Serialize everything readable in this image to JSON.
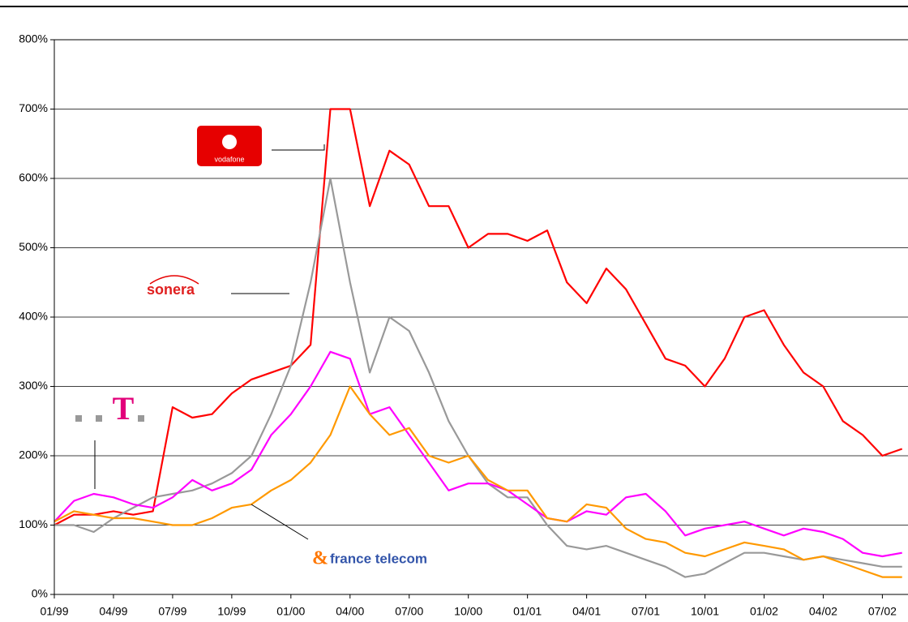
{
  "chart_data": {
    "type": "line",
    "x": [
      0,
      1,
      2,
      3,
      4,
      5,
      6,
      7,
      8,
      9,
      10,
      11,
      12,
      13,
      14,
      15,
      16,
      17,
      18,
      19,
      20,
      21,
      22,
      23,
      24,
      25,
      26,
      27,
      28,
      29,
      30,
      31,
      32,
      33,
      34,
      35,
      36,
      37,
      38,
      39,
      40,
      41,
      42,
      43
    ],
    "series": [
      {
        "name": "vodafone",
        "color": "#ff0000",
        "values": [
          100,
          115,
          115,
          120,
          115,
          120,
          270,
          255,
          260,
          290,
          310,
          320,
          330,
          360,
          700,
          700,
          560,
          640,
          620,
          560,
          560,
          500,
          520,
          520,
          510,
          525,
          450,
          420,
          470,
          440,
          390,
          340,
          330,
          300,
          340,
          400,
          410,
          360,
          320,
          300,
          250,
          230,
          200,
          210
        ]
      },
      {
        "name": "sonera",
        "color": "#999999",
        "values": [
          100,
          100,
          90,
          110,
          125,
          140,
          145,
          150,
          160,
          175,
          200,
          260,
          330,
          450,
          600,
          450,
          320,
          400,
          380,
          320,
          250,
          200,
          160,
          140,
          140,
          100,
          70,
          65,
          70,
          60,
          50,
          40,
          25,
          30,
          45,
          60,
          60,
          55,
          50,
          55,
          50,
          45,
          40,
          40
        ]
      },
      {
        "name": "T",
        "color": "#ff00ff",
        "values": [
          105,
          135,
          145,
          140,
          130,
          125,
          140,
          165,
          150,
          160,
          180,
          230,
          260,
          300,
          350,
          340,
          260,
          270,
          230,
          190,
          150,
          160,
          160,
          150,
          130,
          110,
          105,
          120,
          115,
          140,
          145,
          120,
          85,
          95,
          100,
          105,
          95,
          85,
          95,
          90,
          80,
          60,
          55,
          60
        ]
      },
      {
        "name": "france telecom",
        "color": "#ff9900",
        "values": [
          105,
          120,
          115,
          110,
          110,
          105,
          100,
          100,
          110,
          125,
          130,
          150,
          165,
          190,
          230,
          300,
          260,
          230,
          240,
          200,
          190,
          200,
          165,
          150,
          150,
          110,
          105,
          130,
          125,
          95,
          80,
          75,
          60,
          55,
          65,
          75,
          70,
          65,
          50,
          55,
          45,
          35,
          25,
          25
        ]
      }
    ],
    "xlim": [
      0,
      43.3
    ],
    "xticks": [
      {
        "value": 0,
        "label": "01/99"
      },
      {
        "value": 3,
        "label": "04/99"
      },
      {
        "value": 6,
        "label": "07/99"
      },
      {
        "value": 9,
        "label": "10/99"
      },
      {
        "value": 12,
        "label": "01/00"
      },
      {
        "value": 15,
        "label": "04/00"
      },
      {
        "value": 18,
        "label": "07/00"
      },
      {
        "value": 21,
        "label": "10/00"
      },
      {
        "value": 24,
        "label": "01/01"
      },
      {
        "value": 27,
        "label": "04/01"
      },
      {
        "value": 30,
        "label": "07/01"
      },
      {
        "value": 33,
        "label": "10/01"
      },
      {
        "value": 36,
        "label": "01/02"
      },
      {
        "value": 39,
        "label": "04/02"
      },
      {
        "value": 42,
        "label": "07/02"
      }
    ],
    "ylim": [
      0,
      800
    ],
    "yticks": [
      {
        "value": 0,
        "label": "0%"
      },
      {
        "value": 100,
        "label": "100%"
      },
      {
        "value": 200,
        "label": "200%"
      },
      {
        "value": 300,
        "label": "300%"
      },
      {
        "value": 400,
        "label": "400%"
      },
      {
        "value": 500,
        "label": "500%"
      },
      {
        "value": 600,
        "label": "600%"
      },
      {
        "value": 700,
        "label": "700%"
      },
      {
        "value": 800,
        "label": "800%"
      }
    ],
    "grid": true
  }
}
